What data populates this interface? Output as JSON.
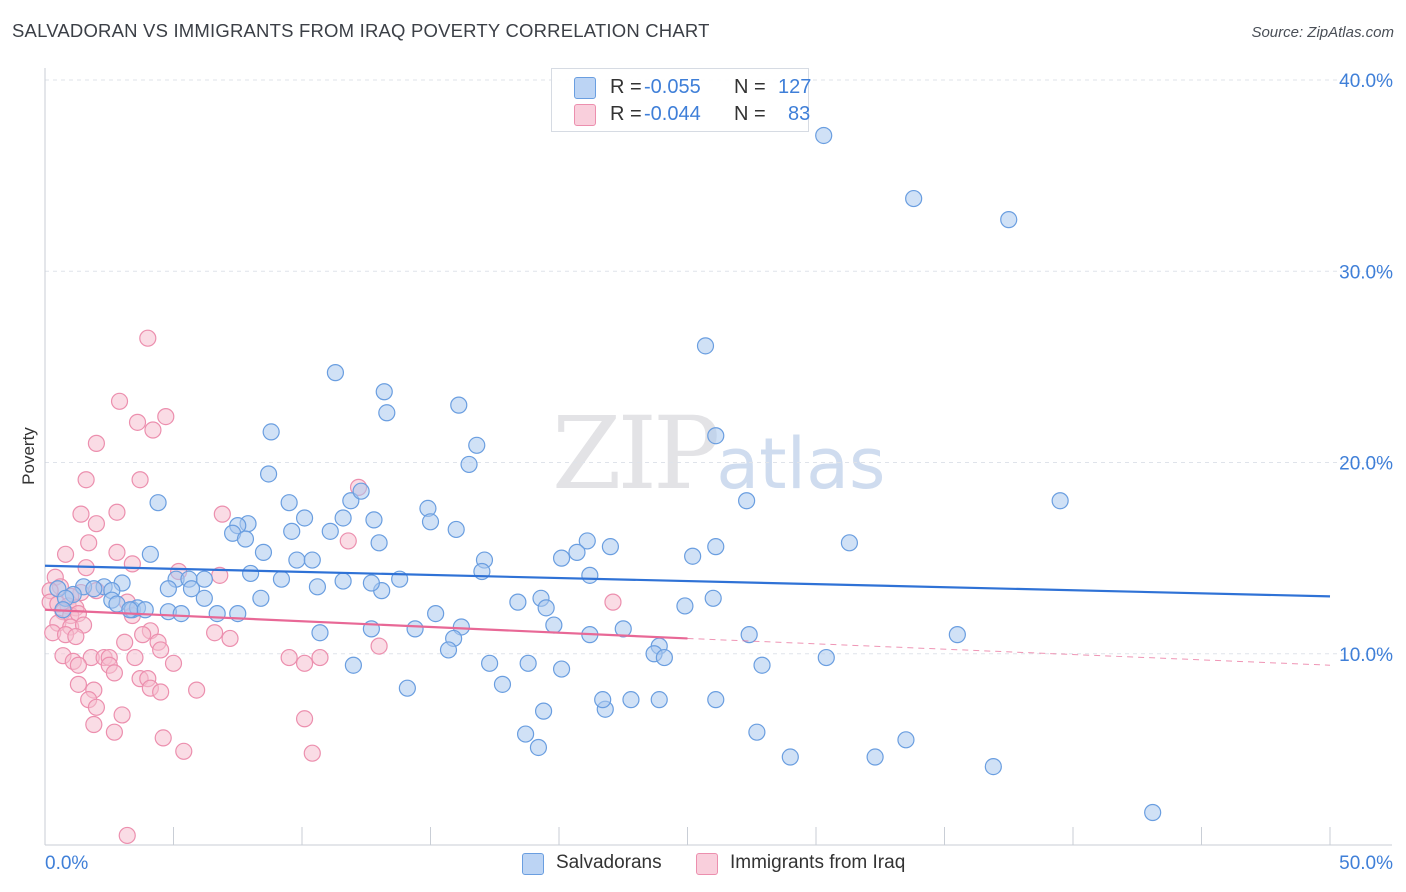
{
  "header": {
    "title": "SALVADORAN VS IMMIGRANTS FROM IRAQ POVERTY CORRELATION CHART",
    "source": "Source: ZipAtlas.com"
  },
  "watermark": {
    "part1": "ZIP",
    "part2": "atlas"
  },
  "legend": {
    "rows": [
      {
        "r_label": "R =",
        "r_value": "-0.055",
        "n_label": "N =",
        "n_value": "127"
      },
      {
        "r_label": "R =",
        "r_value": "-0.044",
        "n_label": "N =",
        "n_value": "83"
      }
    ],
    "bottom": [
      "Salvadorans",
      "Immigrants from Iraq"
    ]
  },
  "colors": {
    "blue_fill": "#a9c8ef",
    "blue_stroke": "#6a9ee0",
    "blue_line": "#2f72d6",
    "pink_fill": "#f6bfd0",
    "pink_stroke": "#ec8fae",
    "pink_line": "#e86896",
    "tick_text": "#3f7fd8",
    "grid": "#dfe3ea"
  },
  "chart_data": {
    "type": "scatter",
    "title": "SALVADORAN VS IMMIGRANTS FROM IRAQ POVERTY CORRELATION CHART",
    "xlabel": "",
    "ylabel": "Poverty",
    "xlim": [
      0,
      50
    ],
    "ylim": [
      0,
      40
    ],
    "x_tick_labels": [
      "0.0%",
      "50.0%"
    ],
    "y_ticks": [
      10,
      20,
      30,
      40
    ],
    "y_tick_labels": [
      "10.0%",
      "20.0%",
      "30.0%",
      "40.0%"
    ],
    "series": [
      {
        "name": "Salvadorans",
        "r": -0.055,
        "n": 127,
        "trend": {
          "x": [
            0,
            50
          ],
          "y": [
            14.6,
            13.0
          ]
        },
        "points": [
          [
            30.3,
            37.1
          ],
          [
            33.8,
            33.8
          ],
          [
            37.5,
            32.7
          ],
          [
            25.7,
            26.1
          ],
          [
            11.3,
            24.7
          ],
          [
            13.2,
            23.7
          ],
          [
            16.1,
            23.0
          ],
          [
            13.3,
            22.6
          ],
          [
            8.8,
            21.6
          ],
          [
            16.8,
            20.9
          ],
          [
            26.1,
            21.4
          ],
          [
            16.5,
            19.9
          ],
          [
            8.7,
            19.4
          ],
          [
            39.5,
            18.0
          ],
          [
            27.3,
            18.0
          ],
          [
            4.4,
            17.9
          ],
          [
            9.5,
            17.9
          ],
          [
            14.9,
            17.6
          ],
          [
            11.9,
            18.0
          ],
          [
            12.3,
            18.5
          ],
          [
            10.1,
            17.1
          ],
          [
            11.6,
            17.1
          ],
          [
            7.9,
            16.8
          ],
          [
            7.5,
            16.7
          ],
          [
            12.8,
            17.0
          ],
          [
            15.0,
            16.9
          ],
          [
            11.1,
            16.4
          ],
          [
            9.6,
            16.4
          ],
          [
            16.0,
            16.5
          ],
          [
            7.3,
            16.3
          ],
          [
            7.8,
            16.0
          ],
          [
            13.0,
            15.8
          ],
          [
            21.1,
            15.9
          ],
          [
            22.0,
            15.6
          ],
          [
            26.1,
            15.6
          ],
          [
            31.3,
            15.8
          ],
          [
            25.2,
            15.1
          ],
          [
            20.7,
            15.3
          ],
          [
            20.1,
            15.0
          ],
          [
            8.5,
            15.3
          ],
          [
            4.1,
            15.2
          ],
          [
            9.8,
            14.9
          ],
          [
            10.4,
            14.9
          ],
          [
            17.1,
            14.9
          ],
          [
            17.0,
            14.3
          ],
          [
            21.2,
            14.1
          ],
          [
            8.0,
            14.2
          ],
          [
            9.2,
            13.9
          ],
          [
            11.6,
            13.8
          ],
          [
            13.8,
            13.9
          ],
          [
            6.2,
            13.9
          ],
          [
            5.1,
            13.9
          ],
          [
            5.6,
            13.9
          ],
          [
            3.0,
            13.7
          ],
          [
            1.5,
            13.5
          ],
          [
            2.3,
            13.5
          ],
          [
            0.5,
            13.4
          ],
          [
            2.6,
            13.3
          ],
          [
            1.9,
            13.4
          ],
          [
            4.8,
            13.4
          ],
          [
            5.7,
            13.4
          ],
          [
            10.6,
            13.5
          ],
          [
            1.1,
            13.1
          ],
          [
            0.8,
            12.9
          ],
          [
            2.6,
            12.8
          ],
          [
            2.8,
            12.6
          ],
          [
            3.4,
            12.3
          ],
          [
            3.6,
            12.4
          ],
          [
            6.2,
            12.9
          ],
          [
            8.4,
            12.9
          ],
          [
            13.1,
            13.3
          ],
          [
            3.3,
            12.3
          ],
          [
            3.9,
            12.3
          ],
          [
            0.7,
            12.3
          ],
          [
            4.8,
            12.2
          ],
          [
            6.7,
            12.1
          ],
          [
            5.3,
            12.1
          ],
          [
            7.5,
            12.1
          ],
          [
            12.7,
            13.7
          ],
          [
            18.4,
            12.7
          ],
          [
            19.3,
            12.9
          ],
          [
            26.0,
            12.9
          ],
          [
            19.5,
            12.4
          ],
          [
            24.9,
            12.5
          ],
          [
            15.2,
            12.1
          ],
          [
            14.4,
            11.3
          ],
          [
            12.7,
            11.3
          ],
          [
            19.8,
            11.5
          ],
          [
            21.2,
            11.0
          ],
          [
            16.2,
            11.4
          ],
          [
            27.4,
            11.0
          ],
          [
            35.5,
            11.0
          ],
          [
            10.7,
            11.1
          ],
          [
            22.5,
            11.3
          ],
          [
            15.9,
            10.8
          ],
          [
            15.7,
            10.2
          ],
          [
            23.9,
            10.4
          ],
          [
            23.7,
            10.0
          ],
          [
            30.4,
            9.8
          ],
          [
            17.3,
            9.5
          ],
          [
            18.8,
            9.5
          ],
          [
            20.1,
            9.2
          ],
          [
            24.1,
            9.8
          ],
          [
            27.9,
            9.4
          ],
          [
            12.0,
            9.4
          ],
          [
            17.8,
            8.4
          ],
          [
            14.1,
            8.2
          ],
          [
            21.8,
            7.1
          ],
          [
            22.8,
            7.6
          ],
          [
            23.9,
            7.6
          ],
          [
            21.7,
            7.6
          ],
          [
            26.1,
            7.6
          ],
          [
            19.4,
            7.0
          ],
          [
            18.7,
            5.8
          ],
          [
            19.2,
            5.1
          ],
          [
            27.7,
            5.9
          ],
          [
            29.0,
            4.6
          ],
          [
            32.3,
            4.6
          ],
          [
            33.5,
            5.5
          ],
          [
            36.9,
            4.1
          ],
          [
            43.1,
            1.7
          ]
        ]
      },
      {
        "name": "Immigrants from Iraq",
        "r": -0.044,
        "n": 83,
        "trend": {
          "x": [
            0,
            25
          ],
          "y": [
            12.3,
            10.8
          ]
        },
        "trend_dashed": {
          "x": [
            25,
            50
          ],
          "y": [
            10.8,
            9.4
          ]
        },
        "points": [
          [
            4.0,
            26.5
          ],
          [
            2.9,
            23.2
          ],
          [
            4.7,
            22.4
          ],
          [
            3.6,
            22.1
          ],
          [
            4.2,
            21.7
          ],
          [
            2.0,
            21.0
          ],
          [
            1.6,
            19.1
          ],
          [
            3.7,
            19.1
          ],
          [
            12.2,
            18.7
          ],
          [
            1.4,
            17.3
          ],
          [
            2.8,
            17.4
          ],
          [
            6.9,
            17.3
          ],
          [
            2.0,
            16.8
          ],
          [
            1.7,
            15.8
          ],
          [
            0.8,
            15.2
          ],
          [
            2.8,
            15.3
          ],
          [
            11.8,
            15.9
          ],
          [
            5.2,
            14.3
          ],
          [
            6.8,
            14.1
          ],
          [
            1.6,
            14.5
          ],
          [
            3.4,
            14.7
          ],
          [
            0.4,
            14.0
          ],
          [
            0.6,
            13.5
          ],
          [
            0.2,
            13.3
          ],
          [
            1.4,
            13.2
          ],
          [
            1.0,
            13.0
          ],
          [
            2.0,
            13.3
          ],
          [
            0.2,
            12.7
          ],
          [
            0.5,
            12.6
          ],
          [
            0.9,
            12.5
          ],
          [
            1.2,
            12.4
          ],
          [
            3.2,
            12.7
          ],
          [
            0.7,
            12.2
          ],
          [
            1.0,
            12.0
          ],
          [
            1.3,
            12.1
          ],
          [
            3.4,
            12.0
          ],
          [
            22.1,
            12.7
          ],
          [
            0.5,
            11.6
          ],
          [
            1.0,
            11.4
          ],
          [
            1.5,
            11.5
          ],
          [
            0.3,
            11.1
          ],
          [
            0.8,
            11.0
          ],
          [
            1.2,
            10.9
          ],
          [
            4.1,
            11.2
          ],
          [
            3.8,
            11.0
          ],
          [
            6.6,
            11.1
          ],
          [
            7.2,
            10.8
          ],
          [
            3.1,
            10.6
          ],
          [
            4.4,
            10.6
          ],
          [
            4.5,
            10.2
          ],
          [
            13.0,
            10.4
          ],
          [
            0.7,
            9.9
          ],
          [
            1.8,
            9.8
          ],
          [
            1.1,
            9.6
          ],
          [
            2.3,
            9.8
          ],
          [
            2.5,
            9.8
          ],
          [
            3.5,
            9.8
          ],
          [
            9.5,
            9.8
          ],
          [
            10.7,
            9.8
          ],
          [
            1.3,
            9.4
          ],
          [
            2.5,
            9.4
          ],
          [
            5.0,
            9.5
          ],
          [
            10.1,
            9.5
          ],
          [
            2.7,
            9.0
          ],
          [
            3.7,
            8.7
          ],
          [
            4.0,
            8.7
          ],
          [
            1.3,
            8.4
          ],
          [
            1.9,
            8.1
          ],
          [
            4.1,
            8.2
          ],
          [
            4.5,
            8.0
          ],
          [
            5.9,
            8.1
          ],
          [
            1.7,
            7.6
          ],
          [
            2.0,
            7.2
          ],
          [
            3.0,
            6.8
          ],
          [
            10.1,
            6.6
          ],
          [
            1.9,
            6.3
          ],
          [
            2.7,
            5.9
          ],
          [
            4.6,
            5.6
          ],
          [
            5.4,
            4.9
          ],
          [
            10.4,
            4.8
          ],
          [
            3.2,
            0.5
          ]
        ]
      }
    ]
  }
}
